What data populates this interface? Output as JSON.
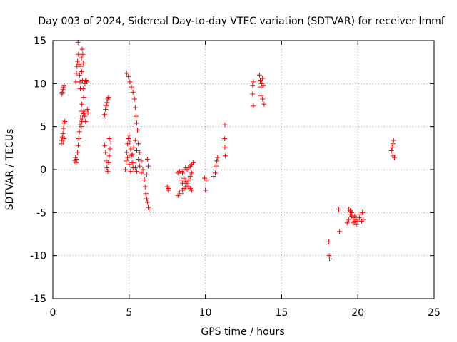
{
  "chart_data": {
    "type": "scatter",
    "title": "Day 003 of 2024, Sidereal Day-to-day VTEC variation (SDTVAR) for receiver lmmf",
    "xlabel": "GPS time / hours",
    "ylabel": "SDTVAR / TECUs",
    "xlim": [
      0,
      25
    ],
    "ylim": [
      -15,
      15
    ],
    "xticks": [
      0,
      5,
      10,
      15,
      20,
      25
    ],
    "yticks": [
      -15,
      -10,
      -5,
      0,
      5,
      10,
      15
    ],
    "xtick_labels": [
      "0",
      "5",
      "10",
      "15",
      "20",
      "25"
    ],
    "ytick_labels": [
      "-15",
      "-10",
      "-5",
      "0",
      "5",
      "10",
      "15"
    ],
    "grid": true,
    "marker": "+",
    "color": "#ff0000",
    "series": [
      {
        "name": "SDTVAR",
        "points": [
          [
            0.62,
            9.0
          ],
          [
            0.66,
            9.3
          ],
          [
            0.7,
            9.6
          ],
          [
            0.74,
            9.8
          ],
          [
            0.6,
            8.8
          ],
          [
            0.55,
            3.0
          ],
          [
            0.58,
            3.4
          ],
          [
            0.62,
            3.8
          ],
          [
            0.66,
            4.2
          ],
          [
            0.7,
            4.8
          ],
          [
            0.74,
            5.4
          ],
          [
            0.78,
            5.6
          ],
          [
            0.7,
            3.2
          ],
          [
            0.74,
            3.6
          ],
          [
            1.45,
            1.0
          ],
          [
            1.48,
            1.4
          ],
          [
            1.52,
            0.8
          ],
          [
            1.55,
            1.2
          ],
          [
            1.5,
            10.2
          ],
          [
            1.55,
            11.2
          ],
          [
            1.58,
            12.0
          ],
          [
            1.62,
            12.6
          ],
          [
            1.65,
            14.8
          ],
          [
            1.68,
            13.4
          ],
          [
            1.72,
            12.2
          ],
          [
            1.75,
            11.0
          ],
          [
            1.78,
            10.2
          ],
          [
            1.8,
            9.4
          ],
          [
            1.62,
            2.0
          ],
          [
            1.66,
            2.8
          ],
          [
            1.7,
            3.6
          ],
          [
            1.74,
            4.4
          ],
          [
            1.78,
            5.2
          ],
          [
            1.82,
            6.0
          ],
          [
            1.86,
            6.8
          ],
          [
            1.9,
            7.6
          ],
          [
            1.84,
            12.0
          ],
          [
            1.88,
            13.0
          ],
          [
            1.92,
            14.0
          ],
          [
            1.96,
            13.4
          ],
          [
            2.0,
            12.4
          ],
          [
            1.9,
            11.4
          ],
          [
            1.94,
            10.4
          ],
          [
            1.98,
            9.4
          ],
          [
            2.02,
            8.4
          ],
          [
            1.86,
            5.0
          ],
          [
            1.9,
            5.6
          ],
          [
            1.94,
            6.0
          ],
          [
            1.98,
            6.5
          ],
          [
            2.02,
            6.8
          ],
          [
            2.06,
            6.6
          ],
          [
            2.1,
            6.2
          ],
          [
            2.14,
            5.6
          ],
          [
            2.1,
            10.0
          ],
          [
            2.14,
            10.3
          ],
          [
            2.18,
            10.4
          ],
          [
            2.22,
            10.2
          ],
          [
            2.26,
            7.0
          ],
          [
            2.3,
            6.6
          ],
          [
            3.35,
            6.0
          ],
          [
            3.4,
            6.4
          ],
          [
            3.45,
            7.0
          ],
          [
            3.5,
            7.4
          ],
          [
            3.55,
            7.8
          ],
          [
            3.6,
            8.2
          ],
          [
            3.65,
            8.4
          ],
          [
            3.4,
            2.8
          ],
          [
            3.45,
            2.0
          ],
          [
            3.5,
            1.0
          ],
          [
            3.55,
            0.2
          ],
          [
            3.6,
            -0.2
          ],
          [
            3.65,
            0.8
          ],
          [
            3.7,
            1.6
          ],
          [
            3.75,
            2.4
          ],
          [
            3.8,
            3.2
          ],
          [
            3.7,
            3.6
          ],
          [
            4.85,
            11.2
          ],
          [
            4.95,
            10.8
          ],
          [
            5.05,
            10.2
          ],
          [
            5.15,
            9.6
          ],
          [
            5.25,
            9.0
          ],
          [
            5.35,
            8.2
          ],
          [
            5.4,
            7.2
          ],
          [
            5.45,
            6.2
          ],
          [
            5.5,
            5.4
          ],
          [
            5.55,
            4.6
          ],
          [
            4.75,
            0.0
          ],
          [
            4.8,
            1.0
          ],
          [
            4.85,
            2.0
          ],
          [
            4.9,
            3.0
          ],
          [
            4.95,
            3.6
          ],
          [
            5.0,
            4.0
          ],
          [
            5.05,
            3.2
          ],
          [
            5.1,
            2.4
          ],
          [
            5.15,
            1.6
          ],
          [
            5.2,
            0.8
          ],
          [
            5.25,
            0.2
          ],
          [
            4.9,
            1.4
          ],
          [
            5.0,
            0.6
          ],
          [
            5.1,
            -0.2
          ],
          [
            5.2,
            1.8
          ],
          [
            5.3,
            2.6
          ],
          [
            5.4,
            3.4
          ],
          [
            5.5,
            2.2
          ],
          [
            5.6,
            1.2
          ],
          [
            5.7,
            0.4
          ],
          [
            5.8,
            -0.4
          ],
          [
            5.3,
            0.8
          ],
          [
            5.4,
            0.2
          ],
          [
            5.5,
            -0.2
          ],
          [
            5.6,
            3.0
          ],
          [
            5.7,
            2.0
          ],
          [
            5.8,
            1.0
          ],
          [
            5.9,
            0.0
          ],
          [
            6.0,
            -1.2
          ],
          [
            6.05,
            -2.0
          ],
          [
            6.1,
            -2.8
          ],
          [
            6.15,
            -3.4
          ],
          [
            6.2,
            -3.8
          ],
          [
            6.25,
            -4.4
          ],
          [
            6.3,
            -4.6
          ],
          [
            6.2,
            1.2
          ],
          [
            6.25,
            0.4
          ],
          [
            6.15,
            -0.6
          ],
          [
            7.5,
            -2.0
          ],
          [
            7.55,
            -2.4
          ],
          [
            7.6,
            -2.2
          ],
          [
            8.2,
            -3.0
          ],
          [
            8.3,
            -2.6
          ],
          [
            8.4,
            -2.8
          ],
          [
            8.5,
            -2.4
          ],
          [
            8.6,
            -2.2
          ],
          [
            8.7,
            -2.0
          ],
          [
            8.8,
            -1.8
          ],
          [
            8.9,
            -2.0
          ],
          [
            9.0,
            -2.2
          ],
          [
            9.1,
            -2.4
          ],
          [
            8.2,
            -0.4
          ],
          [
            8.3,
            -0.2
          ],
          [
            8.4,
            -0.2
          ],
          [
            8.5,
            -0.4
          ],
          [
            8.6,
            -1.0
          ],
          [
            8.7,
            -1.4
          ],
          [
            8.8,
            -1.6
          ],
          [
            8.9,
            -1.2
          ],
          [
            9.0,
            -0.8
          ],
          [
            9.1,
            -0.4
          ],
          [
            8.4,
            -1.2
          ],
          [
            8.5,
            -1.6
          ],
          [
            8.6,
            0.0
          ],
          [
            8.7,
            0.2
          ],
          [
            8.8,
            0.0
          ],
          [
            8.9,
            0.2
          ],
          [
            9.0,
            0.4
          ],
          [
            9.1,
            0.6
          ],
          [
            9.2,
            0.8
          ],
          [
            9.95,
            -1.0
          ],
          [
            10.05,
            -1.2
          ],
          [
            10.0,
            -2.4
          ],
          [
            10.55,
            -0.8
          ],
          [
            10.65,
            -0.4
          ],
          [
            10.7,
            0.4
          ],
          [
            10.75,
            1.0
          ],
          [
            10.8,
            1.4
          ],
          [
            11.25,
            3.6
          ],
          [
            11.28,
            2.6
          ],
          [
            11.3,
            1.6
          ],
          [
            11.28,
            5.2
          ],
          [
            13.1,
            9.8
          ],
          [
            13.15,
            10.2
          ],
          [
            13.1,
            8.8
          ],
          [
            13.15,
            7.4
          ],
          [
            13.55,
            11.0
          ],
          [
            13.6,
            10.4
          ],
          [
            13.65,
            9.6
          ],
          [
            13.7,
            10.0
          ],
          [
            13.75,
            10.6
          ],
          [
            13.8,
            9.8
          ],
          [
            13.65,
            8.6
          ],
          [
            13.75,
            8.2
          ],
          [
            13.85,
            7.6
          ],
          [
            18.1,
            -8.4
          ],
          [
            18.12,
            -10.0
          ],
          [
            18.14,
            -10.4
          ],
          [
            18.75,
            -4.6
          ],
          [
            18.8,
            -7.2
          ],
          [
            19.3,
            -6.2
          ],
          [
            19.4,
            -5.8
          ],
          [
            19.5,
            -5.2
          ],
          [
            19.6,
            -5.0
          ],
          [
            19.7,
            -5.6
          ],
          [
            19.8,
            -6.0
          ],
          [
            19.9,
            -6.4
          ],
          [
            19.4,
            -4.6
          ],
          [
            19.5,
            -4.8
          ],
          [
            19.6,
            -5.4
          ],
          [
            19.7,
            -6.2
          ],
          [
            19.8,
            -5.4
          ],
          [
            19.9,
            -5.8
          ],
          [
            20.0,
            -6.0
          ],
          [
            20.1,
            -5.6
          ],
          [
            20.2,
            -5.2
          ],
          [
            20.3,
            -5.0
          ],
          [
            20.35,
            -5.8
          ],
          [
            20.25,
            -6.0
          ],
          [
            22.2,
            2.2
          ],
          [
            22.25,
            2.6
          ],
          [
            22.3,
            3.0
          ],
          [
            22.35,
            3.4
          ],
          [
            22.3,
            1.6
          ],
          [
            22.4,
            1.4
          ]
        ]
      }
    ]
  }
}
